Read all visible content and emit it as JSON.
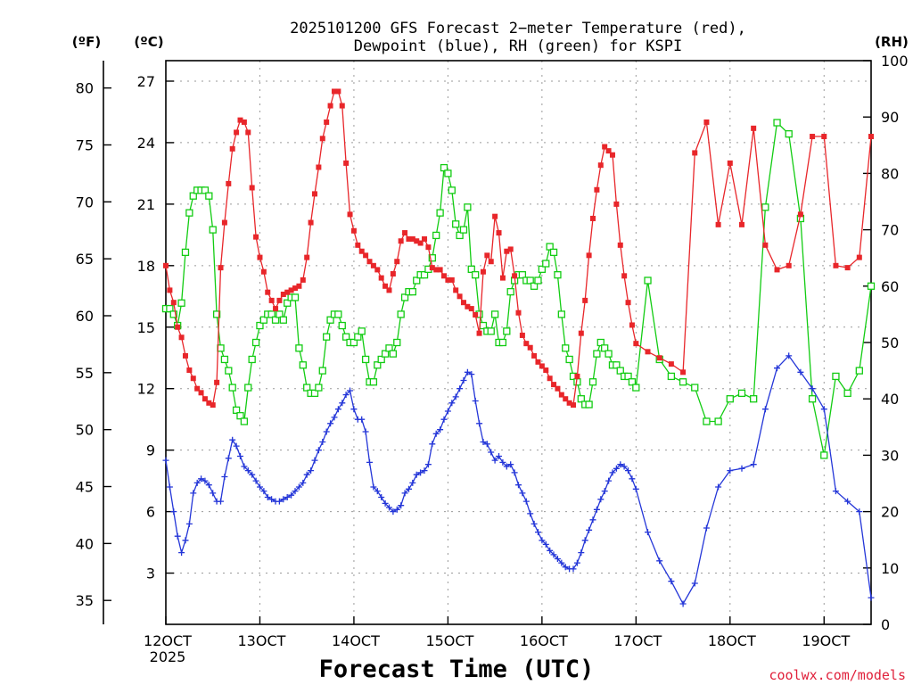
{
  "title_line1": "2025101200 GFS Forecast 2−meter Temperature (red),",
  "title_line2": "Dewpoint (blue), RH (green) for KSPI",
  "xlabel": "Forecast Time (UTC)",
  "credit": "coolwx.com/models",
  "colors": {
    "temperature": "#e8262a",
    "dewpoint": "#2436d8",
    "rh": "#12cc12",
    "credit": "#e0203a",
    "text": "#000000"
  },
  "chart_data": {
    "type": "line",
    "title": "2025101200 GFS Forecast 2-meter Temperature (red), Dewpoint (blue), RH (green) for KSPI",
    "xlabel": "Forecast Time (UTC)",
    "x_unit": "hours since 2025-10-12 00 UTC",
    "xlim": [
      0,
      180
    ],
    "x_ticks": [
      {
        "x": 0,
        "label": "12OCT",
        "sub": "2025"
      },
      {
        "x": 24,
        "label": "13OCT"
      },
      {
        "x": 48,
        "label": "14OCT"
      },
      {
        "x": 72,
        "label": "15OCT"
      },
      {
        "x": 96,
        "label": "16OCT"
      },
      {
        "x": 120,
        "label": "17OCT"
      },
      {
        "x": 144,
        "label": "18OCT"
      },
      {
        "x": 168,
        "label": "19OCT"
      }
    ],
    "axes": {
      "fahrenheit": {
        "label": "(ºF)",
        "ticks": [
          35,
          40,
          45,
          50,
          55,
          60,
          65,
          70,
          75,
          80
        ]
      },
      "celsius": {
        "label": "(ºC)",
        "ylim": [
          0.5,
          28.0
        ],
        "ticks": [
          3,
          6,
          9,
          12,
          15,
          18,
          21,
          24,
          27
        ]
      },
      "rh": {
        "label": "(RH)",
        "ylim": [
          0,
          100
        ],
        "ticks": [
          0,
          10,
          20,
          30,
          40,
          50,
          60,
          70,
          80,
          90,
          100
        ]
      }
    },
    "series": [
      {
        "name": "Temperature",
        "unit": "C",
        "axis": "celsius",
        "marker": "filled-square",
        "x": [
          0,
          1,
          2,
          3,
          4,
          5,
          6,
          7,
          8,
          9,
          10,
          11,
          12,
          13,
          14,
          15,
          16,
          17,
          18,
          19,
          20,
          21,
          22,
          23,
          24,
          25,
          26,
          27,
          28,
          29,
          30,
          31,
          32,
          33,
          34,
          35,
          36,
          37,
          38,
          39,
          40,
          41,
          42,
          43,
          44,
          45,
          46,
          47,
          48,
          49,
          50,
          51,
          52,
          53,
          54,
          55,
          56,
          57,
          58,
          59,
          60,
          61,
          62,
          63,
          64,
          65,
          66,
          67,
          68,
          69,
          70,
          71,
          72,
          73,
          74,
          75,
          76,
          77,
          78,
          79,
          80,
          81,
          82,
          83,
          84,
          85,
          86,
          87,
          88,
          89,
          90,
          91,
          92,
          93,
          94,
          95,
          96,
          97,
          98,
          99,
          100,
          101,
          102,
          103,
          104,
          105,
          106,
          107,
          108,
          109,
          110,
          111,
          112,
          113,
          114,
          115,
          116,
          117,
          118,
          119,
          120,
          123,
          126,
          129,
          132,
          135,
          138,
          141,
          144,
          147,
          150,
          153,
          156,
          159,
          162,
          165,
          168,
          171,
          174,
          177,
          180
        ],
        "values": [
          18.0,
          16.8,
          16.2,
          15.0,
          14.5,
          13.6,
          12.9,
          12.5,
          12.0,
          11.8,
          11.5,
          11.3,
          11.2,
          12.3,
          17.9,
          20.1,
          22.0,
          23.7,
          24.5,
          25.1,
          25.0,
          24.5,
          21.8,
          19.4,
          18.4,
          17.7,
          16.7,
          16.3,
          15.9,
          16.3,
          16.6,
          16.7,
          16.8,
          16.9,
          17.0,
          17.3,
          18.4,
          20.1,
          21.5,
          22.8,
          24.2,
          25.0,
          25.8,
          26.5,
          26.5,
          25.8,
          23.0,
          20.5,
          19.7,
          19.0,
          18.7,
          18.5,
          18.2,
          18.0,
          17.8,
          17.4,
          17.0,
          16.8,
          17.6,
          18.2,
          19.2,
          19.6,
          19.3,
          19.3,
          19.2,
          19.1,
          19.3,
          18.9,
          17.9,
          17.8,
          17.8,
          17.5,
          17.3,
          17.3,
          16.8,
          16.5,
          16.2,
          16.0,
          15.9,
          15.6,
          14.7,
          17.7,
          18.5,
          18.2,
          20.4,
          19.6,
          17.4,
          18.7,
          18.8,
          17.5,
          15.7,
          14.6,
          14.2,
          14.0,
          13.6,
          13.3,
          13.1,
          12.9,
          12.5,
          12.2,
          12.0,
          11.7,
          11.5,
          11.3,
          11.2,
          12.6,
          14.7,
          16.3,
          18.5,
          20.3,
          21.7,
          22.9,
          23.8,
          23.6,
          23.4,
          21.0,
          19.0,
          17.5,
          16.2,
          15.1,
          14.2,
          13.8,
          13.5,
          13.2,
          12.8,
          23.5,
          25.0,
          20.0,
          23.0,
          20.0,
          24.7,
          19.0,
          17.8,
          18.0,
          20.5,
          24.3,
          24.3,
          18.0,
          17.9,
          18.4,
          24.3
        ]
      },
      {
        "name": "Dewpoint",
        "unit": "C",
        "axis": "celsius",
        "marker": "plus",
        "x": [
          0,
          1,
          2,
          3,
          4,
          5,
          6,
          7,
          8,
          9,
          10,
          11,
          12,
          13,
          14,
          15,
          16,
          17,
          18,
          19,
          20,
          21,
          22,
          23,
          24,
          25,
          26,
          27,
          28,
          29,
          30,
          31,
          32,
          33,
          34,
          35,
          36,
          37,
          38,
          39,
          40,
          41,
          42,
          43,
          44,
          45,
          46,
          47,
          48,
          49,
          50,
          51,
          52,
          53,
          54,
          55,
          56,
          57,
          58,
          59,
          60,
          61,
          62,
          63,
          64,
          65,
          66,
          67,
          68,
          69,
          70,
          71,
          72,
          73,
          74,
          75,
          76,
          77,
          78,
          79,
          80,
          81,
          82,
          83,
          84,
          85,
          86,
          87,
          88,
          89,
          90,
          91,
          92,
          93,
          94,
          95,
          96,
          97,
          98,
          99,
          100,
          101,
          102,
          103,
          104,
          105,
          106,
          107,
          108,
          109,
          110,
          111,
          112,
          113,
          114,
          115,
          116,
          117,
          118,
          119,
          120,
          123,
          126,
          129,
          132,
          135,
          138,
          141,
          144,
          147,
          150,
          153,
          156,
          159,
          162,
          165,
          168,
          171,
          174,
          177,
          180
        ],
        "values": [
          8.5,
          7.2,
          6.0,
          4.8,
          4.0,
          4.6,
          5.4,
          6.9,
          7.4,
          7.6,
          7.5,
          7.3,
          6.9,
          6.5,
          6.5,
          7.7,
          8.6,
          9.5,
          9.2,
          8.7,
          8.2,
          8.0,
          7.8,
          7.5,
          7.2,
          7.0,
          6.7,
          6.6,
          6.5,
          6.5,
          6.6,
          6.7,
          6.8,
          7.0,
          7.2,
          7.4,
          7.8,
          8.0,
          8.5,
          9.0,
          9.4,
          9.9,
          10.3,
          10.6,
          11.0,
          11.3,
          11.7,
          11.9,
          11.0,
          10.5,
          10.5,
          9.9,
          8.4,
          7.2,
          7.0,
          6.7,
          6.4,
          6.2,
          6.0,
          6.1,
          6.3,
          6.9,
          7.1,
          7.4,
          7.8,
          7.9,
          8.0,
          8.3,
          9.3,
          9.8,
          10.0,
          10.5,
          10.9,
          11.3,
          11.6,
          12.0,
          12.4,
          12.8,
          12.7,
          11.4,
          10.3,
          9.4,
          9.3,
          8.9,
          8.5,
          8.7,
          8.4,
          8.2,
          8.3,
          7.9,
          7.3,
          6.9,
          6.5,
          5.9,
          5.4,
          5.0,
          4.6,
          4.4,
          4.1,
          3.9,
          3.7,
          3.5,
          3.3,
          3.2,
          3.2,
          3.5,
          4.0,
          4.6,
          5.1,
          5.6,
          6.1,
          6.6,
          7.0,
          7.5,
          7.9,
          8.1,
          8.3,
          8.2,
          8.0,
          7.6,
          7.1,
          5.0,
          3.6,
          2.6,
          1.5,
          2.5,
          5.2,
          7.2,
          8.0,
          8.1,
          8.3,
          11.0,
          13.0,
          13.6,
          12.8,
          12.0,
          11.0,
          7.0,
          6.5,
          6.0,
          1.8
        ]
      },
      {
        "name": "Relative Humidity",
        "unit": "%",
        "axis": "rh",
        "marker": "open-square",
        "x": [
          0,
          1,
          2,
          3,
          4,
          5,
          6,
          7,
          8,
          9,
          10,
          11,
          12,
          13,
          14,
          15,
          16,
          17,
          18,
          19,
          20,
          21,
          22,
          23,
          24,
          25,
          26,
          27,
          28,
          29,
          30,
          31,
          32,
          33,
          34,
          35,
          36,
          37,
          38,
          39,
          40,
          41,
          42,
          43,
          44,
          45,
          46,
          47,
          48,
          49,
          50,
          51,
          52,
          53,
          54,
          55,
          56,
          57,
          58,
          59,
          60,
          61,
          62,
          63,
          64,
          65,
          66,
          67,
          68,
          69,
          70,
          71,
          72,
          73,
          74,
          75,
          76,
          77,
          78,
          79,
          80,
          81,
          82,
          83,
          84,
          85,
          86,
          87,
          88,
          89,
          90,
          91,
          92,
          93,
          94,
          95,
          96,
          97,
          98,
          99,
          100,
          101,
          102,
          103,
          104,
          105,
          106,
          107,
          108,
          109,
          110,
          111,
          112,
          113,
          114,
          115,
          116,
          117,
          118,
          119,
          120,
          123,
          126,
          129,
          132,
          135,
          138,
          141,
          144,
          147,
          150,
          153,
          156,
          159,
          162,
          165,
          168,
          171,
          174,
          177,
          180
        ],
        "values": [
          56,
          56,
          55,
          53,
          57,
          66,
          73,
          76,
          77,
          77,
          77,
          76,
          70,
          55,
          49,
          47,
          45,
          42,
          38,
          37,
          36,
          42,
          47,
          50,
          53,
          54,
          55,
          55,
          54,
          55,
          54,
          57,
          58,
          58,
          49,
          46,
          42,
          41,
          41,
          42,
          45,
          51,
          54,
          55,
          55,
          53,
          51,
          50,
          50,
          51,
          52,
          47,
          43,
          43,
          46,
          47,
          48,
          49,
          48,
          50,
          55,
          58,
          59,
          59,
          61,
          62,
          62,
          63,
          65,
          69,
          73,
          81,
          80,
          77,
          71,
          69,
          70,
          74,
          63,
          62,
          55,
          53,
          52,
          52,
          55,
          50,
          50,
          52,
          59,
          61,
          62,
          62,
          61,
          61,
          60,
          61,
          63,
          64,
          67,
          66,
          62,
          55,
          49,
          47,
          44,
          43,
          40,
          39,
          39,
          43,
          48,
          50,
          49,
          48,
          46,
          46,
          45,
          44,
          44,
          43,
          42,
          61,
          47,
          44,
          43,
          42,
          36,
          36,
          40,
          41,
          40,
          74,
          89,
          87,
          72,
          40,
          30,
          44,
          41,
          45,
          60
        ]
      }
    ]
  }
}
